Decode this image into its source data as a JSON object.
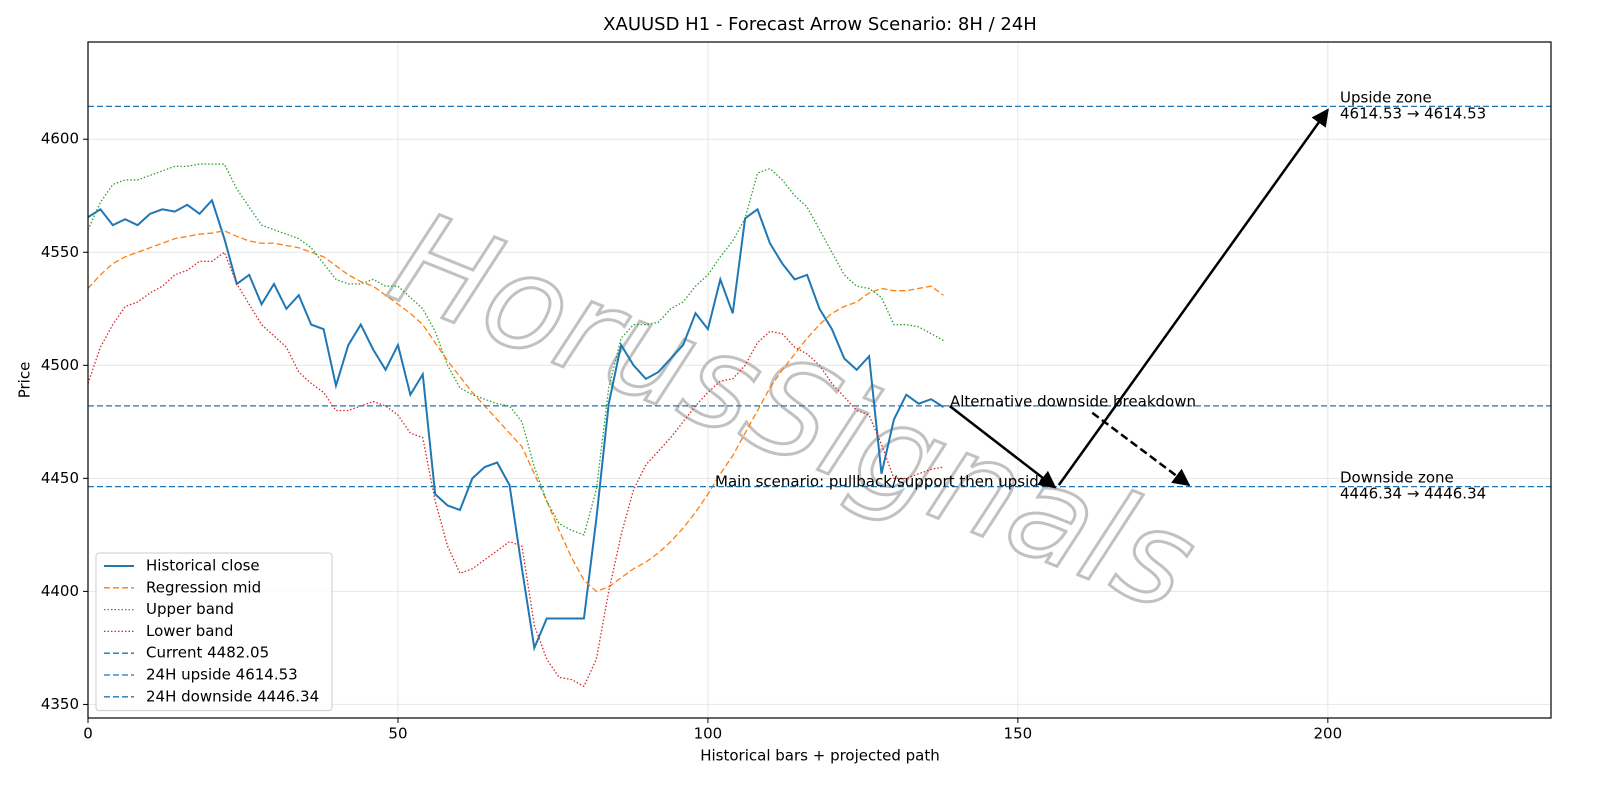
{
  "chart_data": {
    "type": "line",
    "title": "XAUUSD H1 - Forecast Arrow Scenario: 8H / 24H",
    "x_label": "Historical bars + projected path",
    "y_label": "Price",
    "watermark": "HorusSignals",
    "xlim": [
      0,
      236
    ],
    "ylim": [
      4344,
      4643
    ],
    "xticks": [
      0,
      50,
      100,
      150,
      200
    ],
    "yticks": [
      4350,
      4400,
      4450,
      4500,
      4550,
      4600
    ],
    "grid": true,
    "legend": "lower left",
    "x": [
      0,
      2,
      4,
      6,
      8,
      10,
      12,
      14,
      16,
      18,
      20,
      22,
      24,
      26,
      28,
      30,
      32,
      34,
      36,
      38,
      40,
      42,
      44,
      46,
      48,
      50,
      52,
      54,
      56,
      58,
      60,
      62,
      64,
      66,
      68,
      70,
      72,
      74,
      76,
      78,
      80,
      82,
      84,
      86,
      88,
      90,
      92,
      94,
      96,
      98,
      100,
      102,
      104,
      106,
      108,
      110,
      112,
      114,
      116,
      118,
      120,
      122,
      124,
      126,
      128,
      130,
      132,
      134,
      136,
      138
    ],
    "series": [
      {
        "name": "Historical close",
        "color": "#1f77b4",
        "style": "solid",
        "width": 2,
        "values": [
          4565.5,
          4569,
          4562,
          4564.6,
          4562,
          4567,
          4569,
          4568,
          4571,
          4567,
          4573,
          4556,
          4536,
          4540,
          4527,
          4536,
          4525,
          4531,
          4518,
          4516,
          4491,
          4509,
          4518,
          4507,
          4498,
          4509,
          4487,
          4496,
          4443,
          4438,
          4436,
          4450,
          4455,
          4457,
          4447,
          4410,
          4375,
          4388,
          4388,
          4388,
          4388,
          4432,
          4483,
          4509,
          4500,
          4494,
          4497,
          4503,
          4509,
          4523,
          4516,
          4538,
          4523,
          4565,
          4569,
          4554,
          4545,
          4538,
          4540,
          4525,
          4516,
          4503,
          4498,
          4504,
          4452,
          4476,
          4487,
          4483,
          4485,
          4481.5
        ]
      },
      {
        "name": "Regression mid",
        "color": "#ff7f0e",
        "style": "dashed",
        "width": 1.3,
        "values": [
          4534,
          4540,
          4545,
          4548,
          4550,
          4552,
          4554,
          4556,
          4557,
          4558,
          4558.5,
          4559.5,
          4557,
          4555,
          4554,
          4554,
          4553,
          4552,
          4550,
          4548,
          4544,
          4540,
          4537,
          4535,
          4531,
          4527,
          4523,
          4518,
          4510,
          4502,
          4495,
          4488,
          4482,
          4476,
          4470,
          4464,
          4452,
          4440,
          4427,
          4415,
          4405,
          4400,
          4402,
          4406,
          4410,
          4413,
          4417,
          4422,
          4428,
          4435,
          4443,
          4452,
          4460,
          4470,
          4480,
          4490,
          4498,
          4505,
          4512,
          4518,
          4523,
          4526,
          4528,
          4532,
          4534,
          4533,
          4533,
          4534,
          4535,
          4531
        ]
      },
      {
        "name": "Upper band",
        "color": "#2ca02c",
        "style": "dotted",
        "width": 1.3,
        "values": [
          4560,
          4572,
          4580,
          4582,
          4582,
          4584,
          4586,
          4588,
          4588,
          4589,
          4589,
          4589,
          4578,
          4570,
          4562,
          4560,
          4558,
          4556,
          4552,
          4545,
          4538,
          4536,
          4536,
          4538,
          4535,
          4535,
          4530,
          4525,
          4515,
          4500,
          4490,
          4487,
          4485,
          4483,
          4482,
          4475,
          4455,
          4440,
          4430,
          4427,
          4425,
          4445,
          4490,
          4512,
          4518,
          4518,
          4519,
          4525,
          4528,
          4535,
          4540,
          4548,
          4555,
          4565,
          4585,
          4587,
          4582,
          4575,
          4570,
          4560,
          4550,
          4540,
          4535,
          4534,
          4530,
          4518,
          4518,
          4517,
          4514,
          4511
        ]
      },
      {
        "name": "Lower band",
        "color": "#d62728",
        "style": "dotted",
        "width": 1.3,
        "values": [
          4492,
          4508,
          4518,
          4526,
          4528,
          4532,
          4535,
          4540,
          4542,
          4546,
          4546,
          4550,
          4536,
          4527,
          4518,
          4513,
          4508,
          4497,
          4492,
          4488,
          4480,
          4480,
          4482,
          4484,
          4482,
          4478,
          4470,
          4468,
          4440,
          4420,
          4408,
          4410,
          4414,
          4418,
          4422,
          4420,
          4385,
          4370,
          4362,
          4361,
          4358,
          4370,
          4400,
          4425,
          4445,
          4456,
          4462,
          4468,
          4475,
          4482,
          4488,
          4493,
          4494,
          4500,
          4510,
          4515,
          4514,
          4508,
          4505,
          4500,
          4492,
          4486,
          4480,
          4478,
          4465,
          4450,
          4450,
          4452,
          4454,
          4455
        ]
      }
    ],
    "hlines": [
      {
        "name": "Current 4482.05",
        "value": 4482.05,
        "color": "#1f77b4"
      },
      {
        "name": "24H upside 4614.53",
        "value": 4614.53,
        "color": "#1f77b4"
      },
      {
        "name": "24H downside 4446.34",
        "value": 4446.34,
        "color": "#1f77b4"
      }
    ],
    "arrows": [
      {
        "from": [
          139,
          4482
        ],
        "to": [
          156,
          4446
        ],
        "style": "solid"
      },
      {
        "from": [
          156.6,
          4447
        ],
        "to": [
          200,
          4613
        ],
        "style": "solid"
      },
      {
        "from": [
          162,
          4479
        ],
        "to": [
          177.6,
          4447
        ],
        "style": "dashed"
      }
    ],
    "annotations": [
      {
        "text": "Alternative downside breakdown"
      },
      {
        "text": "Main scenario: pullback/support then upside"
      },
      {
        "text": [
          "Upside zone",
          "4614.53 → 4614.53"
        ]
      },
      {
        "text": [
          "Downside zone",
          "4446.34 → 4446.34"
        ]
      }
    ]
  }
}
